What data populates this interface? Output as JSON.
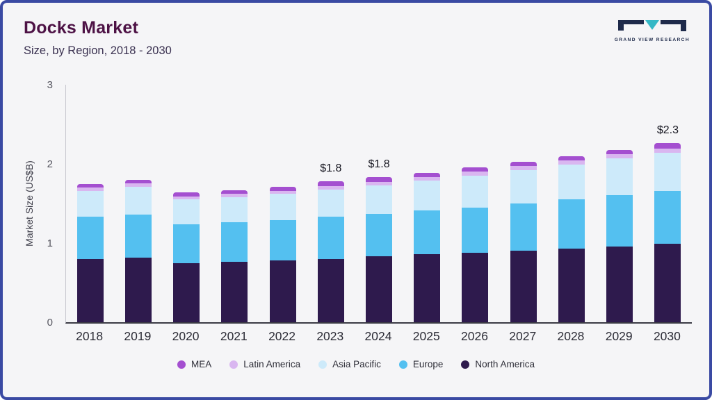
{
  "header": {
    "title": "Docks Market",
    "subtitle": "Size, by Region, 2018 - 2030",
    "brand": "GRAND VIEW RESEARCH"
  },
  "chart_data": {
    "type": "bar",
    "stacked": true,
    "title": "Docks Market Size, by Region, 2018 - 2030",
    "xlabel": "",
    "ylabel": "Market Size (US$B)",
    "ylim": [
      0,
      3
    ],
    "yticks": [
      0,
      1,
      2,
      3
    ],
    "grid": false,
    "legend_position": "bottom",
    "categories": [
      "2018",
      "2019",
      "2020",
      "2021",
      "2022",
      "2023",
      "2024",
      "2025",
      "2026",
      "2027",
      "2028",
      "2029",
      "2030"
    ],
    "series": [
      {
        "name": "North America",
        "color": "#2e1a4d",
        "values": [
          0.8,
          0.82,
          0.75,
          0.76,
          0.78,
          0.8,
          0.83,
          0.86,
          0.88,
          0.9,
          0.93,
          0.96,
          0.99
        ]
      },
      {
        "name": "Europe",
        "color": "#54c0f0",
        "values": [
          0.53,
          0.54,
          0.49,
          0.5,
          0.51,
          0.53,
          0.54,
          0.55,
          0.57,
          0.6,
          0.62,
          0.65,
          0.67
        ]
      },
      {
        "name": "Asia Pacific",
        "color": "#cdeafa",
        "values": [
          0.33,
          0.35,
          0.31,
          0.32,
          0.33,
          0.35,
          0.36,
          0.38,
          0.4,
          0.42,
          0.44,
          0.46,
          0.48
        ]
      },
      {
        "name": "Latin America",
        "color": "#d9b6f0",
        "values": [
          0.04,
          0.04,
          0.04,
          0.04,
          0.04,
          0.04,
          0.04,
          0.04,
          0.05,
          0.05,
          0.05,
          0.05,
          0.05
        ]
      },
      {
        "name": "MEA",
        "color": "#a44fd0",
        "values": [
          0.05,
          0.05,
          0.05,
          0.05,
          0.05,
          0.06,
          0.06,
          0.06,
          0.06,
          0.06,
          0.06,
          0.06,
          0.07
        ]
      }
    ],
    "totals": [
      1.75,
      1.8,
      1.64,
      1.67,
      1.71,
      1.78,
      1.83,
      1.89,
      1.96,
      2.03,
      2.1,
      2.18,
      2.26
    ],
    "annotations": {
      "2023": "$1.8",
      "2024": "$1.8",
      "2030": "$2.3"
    },
    "legend_order": [
      "MEA",
      "Latin America",
      "Asia Pacific",
      "Europe",
      "North America"
    ]
  }
}
